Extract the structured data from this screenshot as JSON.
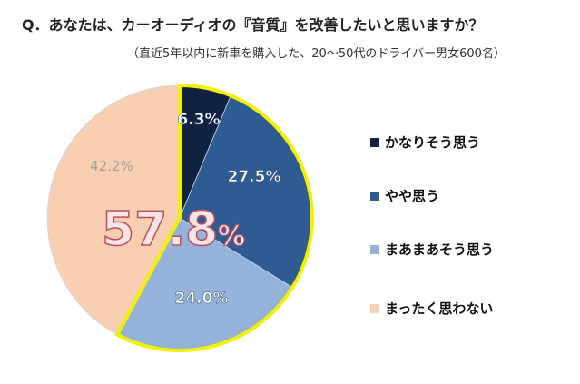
{
  "chart_data": {
    "type": "pie",
    "title": "Q．あなたは、カーオーディオの『音質』を改善したいと思いますか？",
    "subtitle": "（直近5年以内に新車を購入した、20～50代のドライバー男女600名）",
    "categories": [
      "かなりそう思う",
      "やや思う",
      "まあまあそう思う",
      "まったく思わない"
    ],
    "values": [
      6.3,
      27.5,
      24.0,
      42.2
    ],
    "labels": [
      "6.3%",
      "27.5%",
      "24.0%",
      "42.2%"
    ],
    "colors": [
      "#10223f",
      "#2f5b93",
      "#95b3da",
      "#f8cfb1"
    ],
    "label_colors": [
      "#ffffff",
      "#ffffff",
      "#ffffff",
      "#a0a0a0"
    ],
    "highlight": {
      "text": "57.8",
      "unit": "%",
      "covers": [
        "かなりそう思う",
        "やや思う",
        "まあまあそう思う"
      ],
      "outline_color": "#f2f200"
    },
    "legend_placement": "right"
  }
}
